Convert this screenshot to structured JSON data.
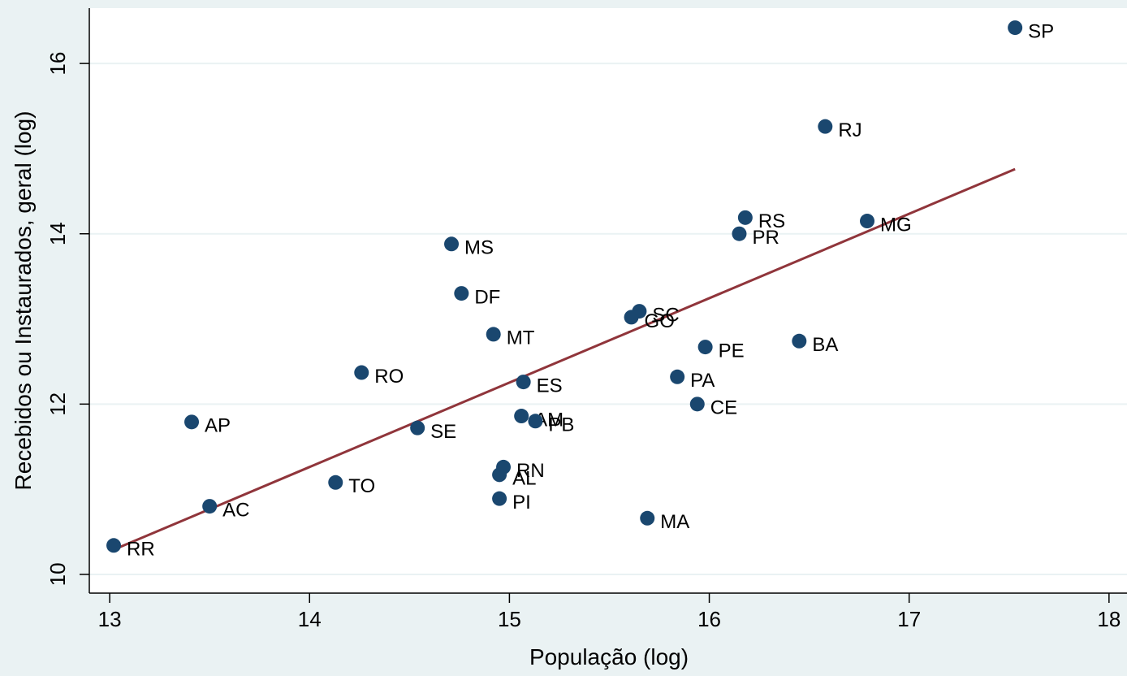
{
  "chart_data": {
    "type": "scatter",
    "xlabel": "População (log)",
    "ylabel": "Recebidos ou Instaurados, geral (log)",
    "x": [
      17.53,
      16.58,
      16.18,
      16.79,
      16.15,
      14.71,
      14.76,
      15.65,
      15.61,
      14.92,
      16.45,
      15.98,
      14.26,
      15.07,
      15.84,
      15.94,
      13.41,
      15.06,
      15.13,
      14.54,
      14.97,
      14.95,
      14.13,
      14.95,
      13.5,
      15.69,
      13.02
    ],
    "values": [
      16.42,
      15.26,
      14.19,
      14.15,
      14.0,
      13.88,
      13.3,
      13.09,
      13.02,
      12.82,
      12.74,
      12.67,
      12.37,
      12.26,
      12.32,
      12.0,
      11.79,
      11.86,
      11.8,
      11.72,
      11.26,
      11.17,
      11.08,
      10.89,
      10.8,
      10.66,
      10.34
    ],
    "labels": [
      "SP",
      "RJ",
      "RS",
      "MG",
      "PR",
      "MS",
      "DF",
      "SC",
      "GO",
      "MT",
      "BA",
      "PE",
      "RO",
      "ES",
      "PA",
      "CE",
      "AP",
      "AM",
      "PB",
      "SE",
      "RN",
      "AL",
      "TO",
      "PI",
      "AC",
      "MA",
      "RR"
    ],
    "color": "#1a476f",
    "fit_line": {
      "x": [
        13.02,
        17.53
      ],
      "values": [
        10.29,
        14.76
      ],
      "color": "#90353b"
    },
    "xlim": [
      12.898,
      18.09
    ],
    "ylim": [
      9.78,
      16.65
    ],
    "xticks": [
      13,
      14,
      15,
      16,
      17,
      18
    ],
    "yticks": [
      10,
      12,
      14,
      16
    ],
    "grid": true
  }
}
